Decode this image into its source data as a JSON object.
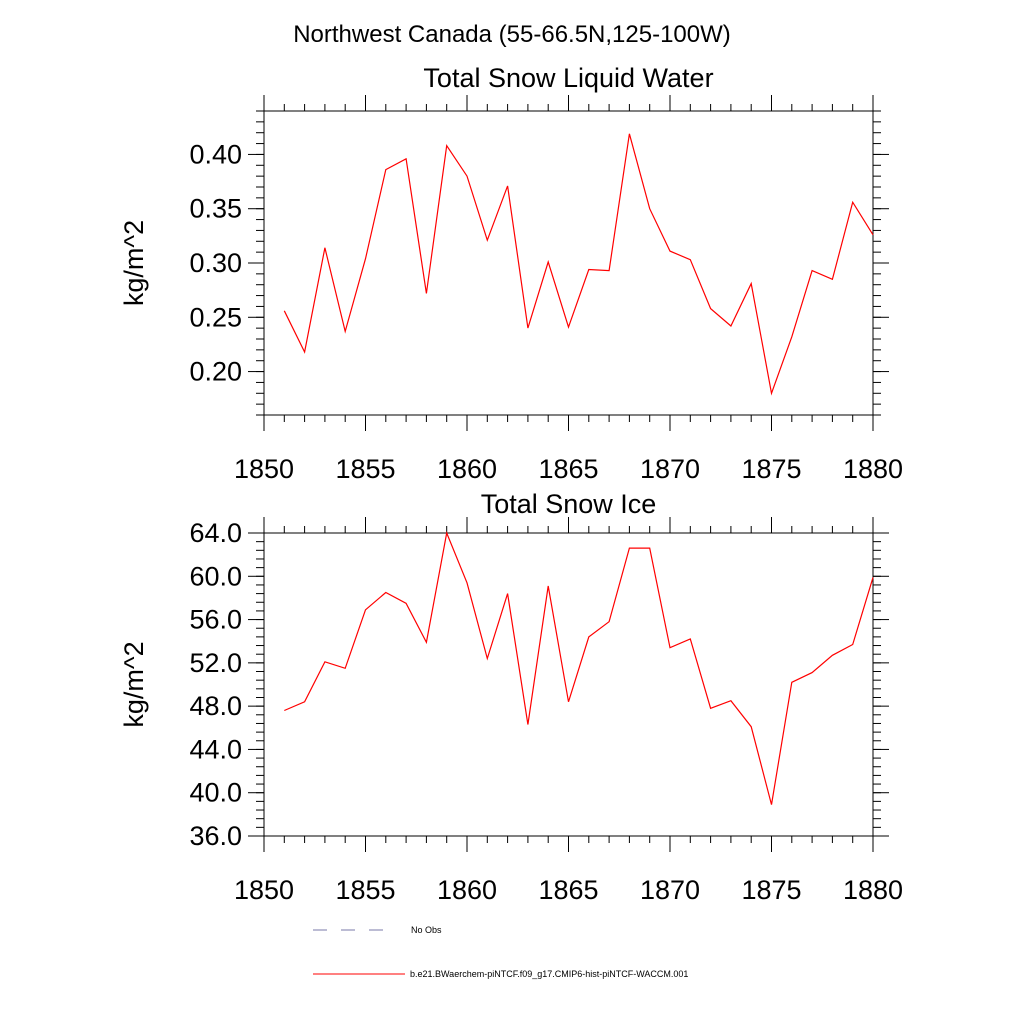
{
  "figure": {
    "main_title": "Northwest Canada (55-66.5N,125-100W)"
  },
  "chart_data": [
    {
      "type": "line",
      "title": "Total Snow Liquid Water",
      "ylabel": "kg/m^2",
      "xlabel": "",
      "xlim": [
        1850,
        1880
      ],
      "ylim": [
        0.16,
        0.44
      ],
      "x_ticks": [
        1850,
        1855,
        1860,
        1865,
        1870,
        1875,
        1880
      ],
      "x_tick_labels": [
        "1850",
        "1855",
        "1860",
        "1865",
        "1870",
        "1875",
        "1880"
      ],
      "y_ticks": [
        0.2,
        0.25,
        0.3,
        0.35,
        0.4
      ],
      "y_tick_labels": [
        "0.20",
        "0.25",
        "0.30",
        "0.35",
        "0.40"
      ],
      "grid": false,
      "series": [
        {
          "name": "b.e21.BWaerchem-piNTCF.f09_g17.CMIP6-hist-piNTCF-WACCM.001",
          "color": "#ff0000",
          "x": [
            1851,
            1852,
            1853,
            1854,
            1855,
            1856,
            1857,
            1858,
            1859,
            1860,
            1861,
            1862,
            1863,
            1864,
            1865,
            1866,
            1867,
            1868,
            1869,
            1870,
            1871,
            1872,
            1873,
            1874,
            1875,
            1876,
            1877,
            1878,
            1879,
            1880
          ],
          "y": [
            0.256,
            0.218,
            0.314,
            0.237,
            0.304,
            0.386,
            0.396,
            0.272,
            0.408,
            0.38,
            0.321,
            0.371,
            0.24,
            0.301,
            0.241,
            0.294,
            0.293,
            0.419,
            0.35,
            0.311,
            0.303,
            0.258,
            0.242,
            0.281,
            0.18,
            0.232,
            0.293,
            0.285,
            0.356,
            0.326
          ]
        }
      ]
    },
    {
      "type": "line",
      "title": "Total Snow Ice",
      "ylabel": "kg/m^2",
      "xlabel": "",
      "xlim": [
        1850,
        1880
      ],
      "ylim": [
        36.0,
        64.0
      ],
      "x_ticks": [
        1850,
        1855,
        1860,
        1865,
        1870,
        1875,
        1880
      ],
      "x_tick_labels": [
        "1850",
        "1855",
        "1860",
        "1865",
        "1870",
        "1875",
        "1880"
      ],
      "y_ticks": [
        36.0,
        40.0,
        44.0,
        48.0,
        52.0,
        56.0,
        60.0,
        64.0
      ],
      "y_tick_labels": [
        "36.0",
        "40.0",
        "44.0",
        "48.0",
        "52.0",
        "56.0",
        "60.0",
        "64.0"
      ],
      "grid": false,
      "series": [
        {
          "name": "b.e21.BWaerchem-piNTCF.f09_g17.CMIP6-hist-piNTCF-WACCM.001",
          "color": "#ff0000",
          "x": [
            1851,
            1852,
            1853,
            1854,
            1855,
            1856,
            1857,
            1858,
            1859,
            1860,
            1861,
            1862,
            1863,
            1864,
            1865,
            1866,
            1867,
            1868,
            1869,
            1870,
            1871,
            1872,
            1873,
            1874,
            1875,
            1876,
            1877,
            1878,
            1879,
            1880
          ],
          "y": [
            47.6,
            48.4,
            52.1,
            51.5,
            56.9,
            58.5,
            57.5,
            53.9,
            64.0,
            59.4,
            52.4,
            58.4,
            46.3,
            59.1,
            48.4,
            54.4,
            55.8,
            62.6,
            62.6,
            53.4,
            54.2,
            47.8,
            48.5,
            46.1,
            38.9,
            50.2,
            51.1,
            52.7,
            53.7,
            59.9
          ]
        }
      ]
    }
  ],
  "legend": {
    "position": "bottom-left",
    "entries": [
      {
        "label": "No Obs",
        "color": "#7a7aa8",
        "style": "dashed"
      },
      {
        "label": "b.e21.BWaerchem-piNTCF.f09_g17.CMIP6-hist-piNTCF-WACCM.001",
        "color": "#ff0000",
        "style": "solid"
      }
    ]
  }
}
